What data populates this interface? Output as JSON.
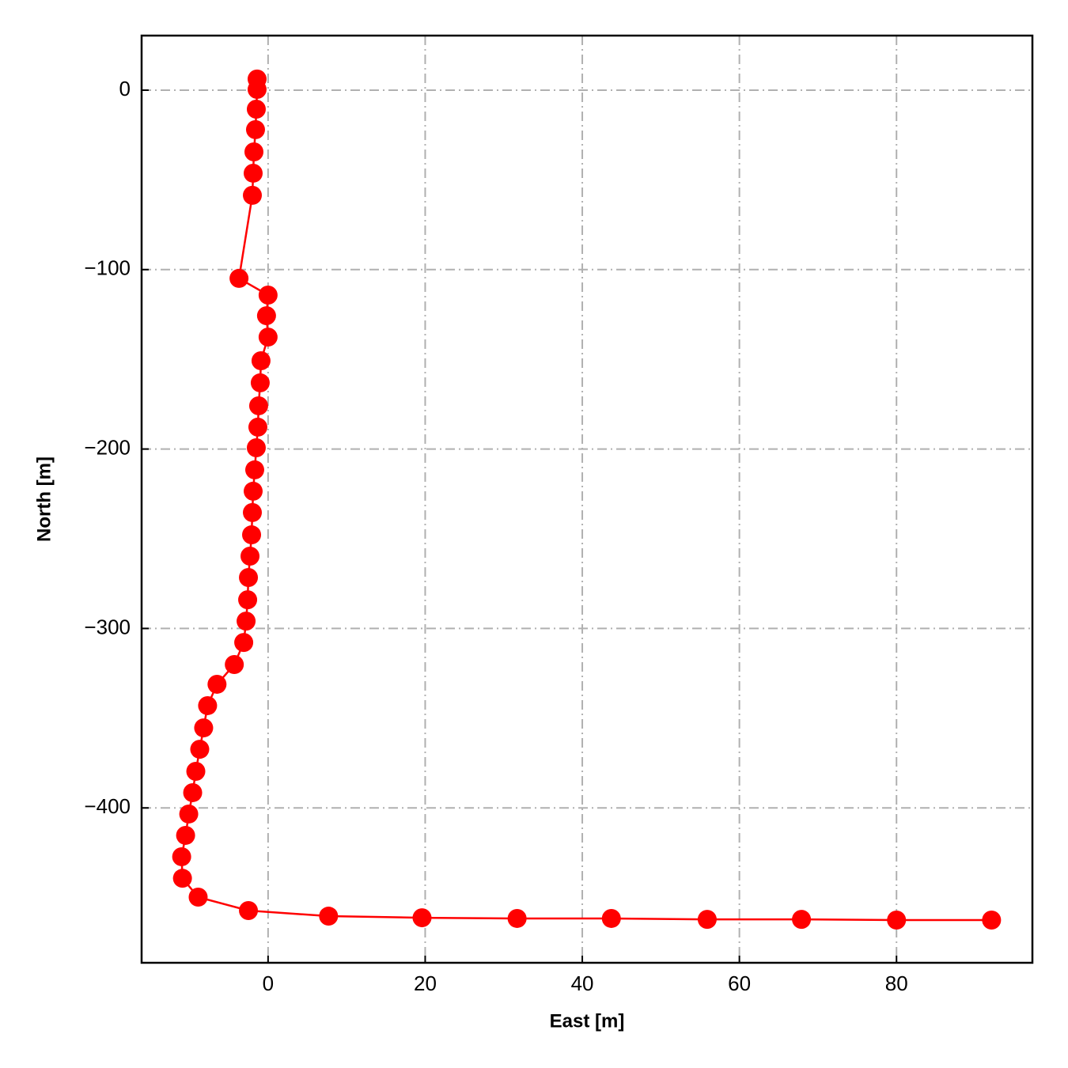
{
  "chart_data": {
    "type": "line",
    "x_label": "East [m]",
    "y_label": "North [m]",
    "x": [
      -1.4,
      -1.4,
      -1.5,
      -1.6,
      -1.8,
      -1.9,
      -2.0,
      -3.7,
      0.0,
      -0.2,
      0.0,
      -0.9,
      -1.0,
      -1.2,
      -1.3,
      -1.5,
      -1.7,
      -1.9,
      -2.0,
      -2.1,
      -2.3,
      -2.5,
      -2.6,
      -2.8,
      -3.1,
      -4.3,
      -6.5,
      -7.7,
      -8.2,
      -8.7,
      -9.2,
      -9.6,
      -10.1,
      -10.5,
      -11.0,
      -10.9,
      -8.9,
      -2.5,
      7.7,
      19.6,
      31.7,
      43.7,
      55.9,
      67.9,
      80.0,
      92.1
    ],
    "values": [
      6.2,
      0.4,
      -10.6,
      -22.0,
      -34.4,
      -46.3,
      -58.6,
      -104.9,
      -114.2,
      -125.7,
      -137.6,
      -150.8,
      -163.1,
      -175.9,
      -187.8,
      -199.3,
      -211.6,
      -223.5,
      -235.4,
      -247.8,
      -259.7,
      -271.6,
      -284.0,
      -295.9,
      -307.8,
      -320.1,
      -331.1,
      -343.0,
      -355.4,
      -367.3,
      -379.6,
      -391.5,
      -403.4,
      -415.3,
      -427.2,
      -439.2,
      -449.7,
      -457.2,
      -460.3,
      -461.2,
      -461.6,
      -461.6,
      -462.1,
      -462.1,
      -462.5,
      -462.5
    ],
    "color": "#ff0000",
    "xlim": [
      -16.1,
      97.3
    ],
    "ylim": [
      -486.3,
      30.4
    ],
    "xticks": [
      0,
      20,
      40,
      60,
      80
    ],
    "yticks": [
      0,
      {
        "value": -100,
        "label": "−100"
      },
      {
        "value": -200,
        "label": "−200"
      },
      {
        "value": -300,
        "label": "−300"
      },
      {
        "value": -400,
        "label": "−400"
      }
    ],
    "grid": true
  }
}
